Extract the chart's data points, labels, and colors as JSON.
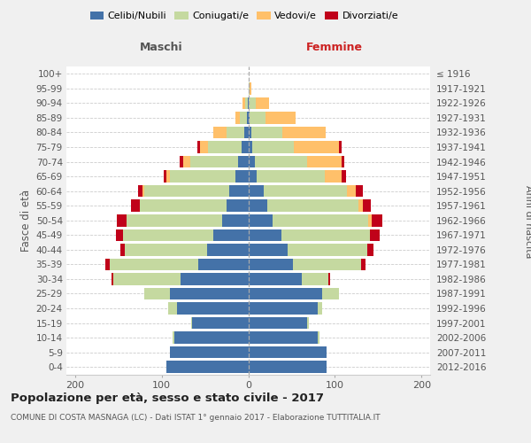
{
  "age_groups": [
    "0-4",
    "5-9",
    "10-14",
    "15-19",
    "20-24",
    "25-29",
    "30-34",
    "35-39",
    "40-44",
    "45-49",
    "50-54",
    "55-59",
    "60-64",
    "65-69",
    "70-74",
    "75-79",
    "80-84",
    "85-89",
    "90-94",
    "95-99",
    "100+"
  ],
  "birth_years": [
    "2012-2016",
    "2007-2011",
    "2002-2006",
    "1997-2001",
    "1992-1996",
    "1987-1991",
    "1982-1986",
    "1977-1981",
    "1972-1976",
    "1967-1971",
    "1962-1966",
    "1957-1961",
    "1952-1956",
    "1947-1951",
    "1942-1946",
    "1937-1941",
    "1932-1936",
    "1927-1931",
    "1922-1926",
    "1917-1921",
    "≤ 1916"
  ],
  "colors": {
    "celibi": "#4472a8",
    "coniugati": "#c5d9a0",
    "vedovi": "#ffc06a",
    "divorziati": "#c0011a"
  },
  "maschi": {
    "celibi": [
      95,
      90,
      85,
      65,
      82,
      90,
      78,
      58,
      48,
      40,
      30,
      25,
      22,
      15,
      12,
      8,
      5,
      2,
      1,
      0,
      0
    ],
    "coniugati": [
      0,
      0,
      2,
      1,
      10,
      30,
      78,
      102,
      95,
      105,
      110,
      100,
      98,
      75,
      55,
      38,
      20,
      8,
      3,
      0,
      0
    ],
    "vedovi": [
      0,
      0,
      0,
      0,
      0,
      0,
      0,
      0,
      0,
      0,
      0,
      0,
      2,
      5,
      8,
      10,
      15,
      5,
      3,
      0,
      0
    ],
    "divorziati": [
      0,
      0,
      0,
      0,
      0,
      0,
      2,
      5,
      5,
      8,
      12,
      10,
      5,
      3,
      4,
      3,
      0,
      0,
      0,
      0,
      0
    ]
  },
  "femmine": {
    "celibi": [
      90,
      90,
      80,
      68,
      80,
      85,
      62,
      52,
      45,
      38,
      28,
      22,
      18,
      10,
      8,
      5,
      4,
      2,
      1,
      0,
      0
    ],
    "coniugati": [
      0,
      0,
      2,
      2,
      5,
      20,
      30,
      78,
      92,
      102,
      110,
      105,
      96,
      78,
      60,
      48,
      35,
      18,
      8,
      2,
      0
    ],
    "vedovi": [
      0,
      0,
      0,
      0,
      0,
      0,
      0,
      0,
      0,
      0,
      5,
      5,
      10,
      20,
      40,
      52,
      50,
      35,
      15,
      2,
      0
    ],
    "divorziati": [
      0,
      0,
      0,
      0,
      0,
      0,
      3,
      5,
      8,
      12,
      12,
      10,
      8,
      5,
      3,
      3,
      0,
      0,
      0,
      0,
      0
    ]
  },
  "title": "Popolazione per età, sesso e stato civile - 2017",
  "subtitle": "COMUNE DI COSTA MASNAGA (LC) - Dati ISTAT 1° gennaio 2017 - Elaborazione TUTTITALIA.IT",
  "xlabel_left": "Maschi",
  "xlabel_right": "Femmine",
  "ylabel_left": "Fasce di età",
  "ylabel_right": "Anni di nascita",
  "xlim": 210,
  "legend_labels": [
    "Celibi/Nubili",
    "Coniugati/e",
    "Vedovi/e",
    "Divorziati/e"
  ],
  "bg_color": "#f0f0f0",
  "plot_bg": "#ffffff",
  "grid_color": "#cccccc",
  "bar_height": 0.82
}
